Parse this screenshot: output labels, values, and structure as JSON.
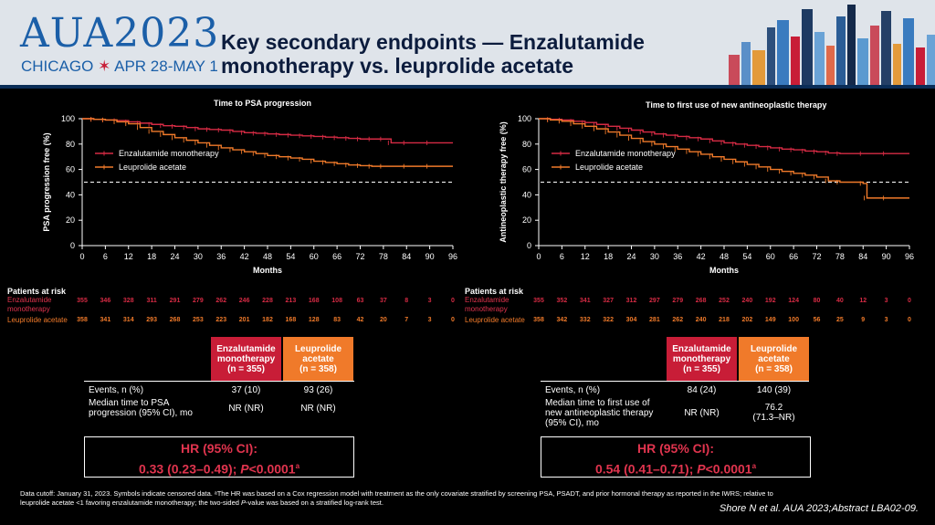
{
  "header": {
    "logo_text": "AUA2023",
    "logo_city": "CHICAGO",
    "logo_star": "✶",
    "logo_dates": "APR 28-MAY 1",
    "title_line1": "Key secondary endpoints — Enzalutamide",
    "title_line2": "monotherapy vs. leuprolide acetate"
  },
  "colors": {
    "enzalutamide": "#d62b44",
    "leuprolide": "#f07a2a",
    "header_bg": "#dfe4ea",
    "brand_blue": "#1b5fa8"
  },
  "chart_data": [
    {
      "type": "line",
      "title": "Time to PSA progression",
      "xlabel": "Months",
      "ylabel": "PSA progression free (%)",
      "xlim": [
        0,
        96
      ],
      "ylim": [
        0,
        100
      ],
      "xticks": [
        0,
        6,
        12,
        18,
        24,
        30,
        36,
        42,
        48,
        54,
        60,
        66,
        72,
        78,
        84,
        90,
        96
      ],
      "yticks": [
        0,
        20,
        40,
        60,
        80,
        100
      ],
      "reference_line": 50,
      "legend_position": "left",
      "series": [
        {
          "name": "Enzalutamide monotherapy",
          "color": "#d62b44",
          "step": true,
          "x": [
            0,
            3,
            6,
            9,
            12,
            15,
            18,
            21,
            24,
            27,
            30,
            33,
            36,
            39,
            42,
            45,
            48,
            51,
            54,
            57,
            60,
            63,
            66,
            69,
            72,
            75,
            78,
            80,
            84,
            90,
            96
          ],
          "y": [
            100,
            99.5,
            99,
            98.5,
            97.5,
            96.5,
            95.5,
            94.5,
            94,
            93,
            92,
            91.5,
            91,
            90,
            89,
            88.5,
            88,
            87.5,
            87,
            86.5,
            86,
            85.5,
            85,
            84.5,
            84,
            84,
            84,
            81,
            81,
            81,
            81
          ]
        },
        {
          "name": "Leuprolide acetate",
          "color": "#f07a2a",
          "step": true,
          "x": [
            0,
            3,
            6,
            9,
            12,
            15,
            18,
            21,
            24,
            27,
            30,
            33,
            36,
            39,
            42,
            45,
            48,
            51,
            54,
            57,
            60,
            63,
            66,
            69,
            72,
            75,
            78,
            84,
            90,
            96
          ],
          "y": [
            100,
            99.5,
            99,
            97.5,
            96,
            93,
            90,
            87.5,
            85,
            83,
            81,
            79,
            77,
            75.5,
            74,
            72.5,
            71,
            70,
            69,
            68,
            66.5,
            65.5,
            64.5,
            63.5,
            63,
            62.5,
            62.5,
            62.5,
            62.5,
            62.5
          ]
        }
      ]
    },
    {
      "type": "line",
      "title": "Time to first use of new antineoplastic therapy",
      "xlabel": "Months",
      "ylabel": "Antineoplastic therapy free (%)",
      "xlim": [
        0,
        96
      ],
      "ylim": [
        0,
        100
      ],
      "xticks": [
        0,
        6,
        12,
        18,
        24,
        30,
        36,
        42,
        48,
        54,
        60,
        66,
        72,
        78,
        84,
        90,
        96
      ],
      "yticks": [
        0,
        20,
        40,
        60,
        80,
        100
      ],
      "reference_line": 50,
      "legend_position": "left",
      "series": [
        {
          "name": "Enzalutamide monotherapy",
          "color": "#d62b44",
          "step": true,
          "x": [
            0,
            3,
            6,
            9,
            12,
            15,
            18,
            21,
            24,
            27,
            30,
            33,
            36,
            39,
            42,
            45,
            48,
            51,
            54,
            57,
            60,
            63,
            66,
            69,
            72,
            75,
            78,
            84,
            90,
            96
          ],
          "y": [
            100,
            99.5,
            99,
            98,
            97,
            95.5,
            94,
            92.5,
            91,
            89.5,
            88,
            87,
            86,
            85,
            84,
            82.5,
            81,
            80,
            79,
            78,
            77,
            76,
            75.5,
            74.5,
            74,
            73,
            72.5,
            72.5,
            72.5,
            72.5
          ]
        },
        {
          "name": "Leuprolide acetate",
          "color": "#f07a2a",
          "step": true,
          "x": [
            0,
            3,
            6,
            9,
            12,
            15,
            18,
            21,
            24,
            27,
            30,
            33,
            36,
            39,
            42,
            45,
            48,
            51,
            54,
            57,
            60,
            63,
            66,
            69,
            72,
            75,
            78,
            84,
            85,
            90,
            96
          ],
          "y": [
            100,
            99,
            98,
            96,
            94,
            92,
            89.5,
            87,
            84.5,
            82,
            80,
            78,
            76,
            74,
            72,
            70,
            68,
            66,
            64,
            62,
            60,
            58.5,
            57,
            55.5,
            54,
            51,
            50,
            49,
            37.5,
            37.5,
            37.5
          ]
        }
      ]
    }
  ],
  "risk_tables": [
    {
      "label": "Patients at risk",
      "rows": [
        {
          "name": "Enzalutamide monotherapy",
          "values": [
            "355",
            "346",
            "328",
            "311",
            "291",
            "279",
            "262",
            "246",
            "228",
            "213",
            "168",
            "108",
            "63",
            "37",
            "8",
            "3",
            "0"
          ]
        },
        {
          "name": "Leuprolide acetate",
          "values": [
            "358",
            "341",
            "314",
            "293",
            "268",
            "253",
            "223",
            "201",
            "182",
            "168",
            "128",
            "83",
            "42",
            "20",
            "7",
            "3",
            "0"
          ]
        }
      ]
    },
    {
      "label": "Patients at risk",
      "rows": [
        {
          "name": "Enzalutamide monotherapy",
          "values": [
            "355",
            "352",
            "341",
            "327",
            "312",
            "297",
            "279",
            "268",
            "252",
            "240",
            "192",
            "124",
            "80",
            "40",
            "12",
            "3",
            "0"
          ]
        },
        {
          "name": "Leuprolide acetate",
          "values": [
            "358",
            "342",
            "332",
            "322",
            "304",
            "281",
            "262",
            "240",
            "218",
            "202",
            "149",
            "100",
            "56",
            "25",
            "9",
            "3",
            "0"
          ]
        }
      ]
    }
  ],
  "summary_tables": [
    {
      "col1_line1": "Enzalutamide",
      "col1_line2": "monotherapy",
      "col1_line3": "(n = 355)",
      "col2_line1": "Leuprolide",
      "col2_line2": "acetate",
      "col2_line3": "(n = 358)",
      "events_label": "Events, n (%)",
      "events_enz": "37 (10)",
      "events_leu": "93 (26)",
      "median_label_1": "Median time to PSA",
      "median_label_2": "progression (95% CI), mo",
      "median_label_3": "",
      "median_enz": "NR (NR)",
      "median_leu_1": "NR (NR)",
      "median_leu_2": "",
      "hr_label": "HR (95% CI):",
      "hr_value": "0.33 (0.23–0.49); ",
      "hr_p_italic": "P",
      "hr_p_value": "<0.0001",
      "hr_sup": "a"
    },
    {
      "col1_line1": "Enzalutamide",
      "col1_line2": "monotherapy",
      "col1_line3": "(n = 355)",
      "col2_line1": "Leuprolide",
      "col2_line2": "acetate",
      "col2_line3": "(n = 358)",
      "events_label": "Events, n (%)",
      "events_enz": "84 (24)",
      "events_leu": "140 (39)",
      "median_label_1": "Median time to first use of",
      "median_label_2": "new antineoplastic therapy",
      "median_label_3": "(95% CI), mo",
      "median_enz": "NR (NR)",
      "median_leu_1": "76.2",
      "median_leu_2": "(71.3–NR)",
      "hr_label": "HR (95% CI):",
      "hr_value": "0.54 (0.41–0.71); ",
      "hr_p_italic": "P",
      "hr_p_value": "<0.0001",
      "hr_sup": "a"
    }
  ],
  "footnote": {
    "line1": "Data cutoff: January 31, 2023. Symbols indicate censored data. ᵃThe HR was based on a Cox regression model with treatment as the only covariate stratified by screening PSA, PSADT, and prior hormonal therapy as reported in the IWRS; relative to",
    "line2_a": "leuprolide acetate <1 favoring enzalutamide monotherapy; the two-sided ",
    "line2_p": "P",
    "line2_b": "-value was based on a stratified log-rank test."
  },
  "citation": "Shore N et al. AUA 2023;Abstract LBA02-09."
}
